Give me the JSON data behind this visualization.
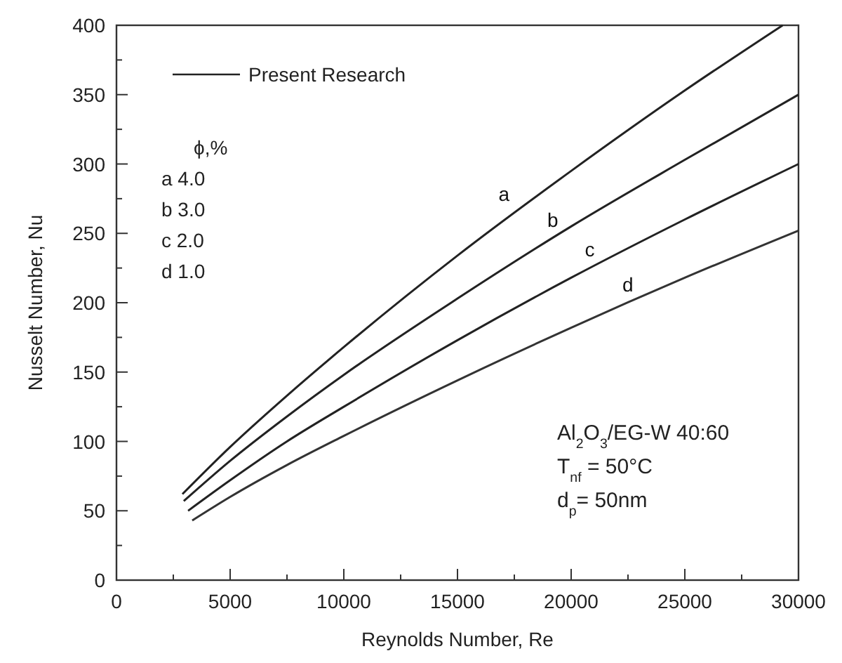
{
  "chart_data": {
    "type": "line",
    "xlabel": "Reynolds Number, Re",
    "ylabel": "Nusselt Number, Nu",
    "legend_title": "Present Research",
    "xlim": [
      0,
      30000
    ],
    "ylim": [
      0,
      400
    ],
    "xticks": [
      0,
      5000,
      10000,
      15000,
      20000,
      25000,
      30000
    ],
    "yticks": [
      0,
      50,
      100,
      150,
      200,
      250,
      300,
      350,
      400
    ],
    "grid": false,
    "marker": "none",
    "line_style": "solid",
    "series": [
      {
        "name": "a",
        "color": "#222222",
        "x": [
          2900,
          5000,
          7500,
          10000,
          15000,
          20000,
          25000,
          29300
        ],
        "values": [
          62,
          96,
          133,
          168,
          234,
          295,
          353,
          400
        ]
      },
      {
        "name": "b",
        "color": "#222222",
        "x": [
          2960,
          5000,
          7500,
          10000,
          15000,
          20000,
          25000,
          30000
        ],
        "values": [
          57,
          86,
          118,
          148,
          203,
          255,
          303,
          350
        ]
      },
      {
        "name": "c",
        "color": "#222222",
        "x": [
          3150,
          5000,
          7500,
          10000,
          15000,
          20000,
          25000,
          30000
        ],
        "values": [
          50,
          72,
          100,
          125,
          173,
          218,
          260,
          300
        ]
      },
      {
        "name": "d",
        "color": "#333333",
        "x": [
          3330,
          5000,
          7500,
          10000,
          15000,
          20000,
          25000,
          30000
        ],
        "values": [
          43,
          60,
          83,
          104,
          144,
          182,
          218,
          252
        ]
      }
    ],
    "annotations": [
      "ϕ,%",
      "a   4.0",
      "b   3.0",
      "c   2.0",
      "d   1.0",
      "Al$_{2}$O$_{3}$/EG-W 40:60",
      "T$_{nf}$ = 50°C",
      "d$_{p}$= 50nm"
    ]
  }
}
